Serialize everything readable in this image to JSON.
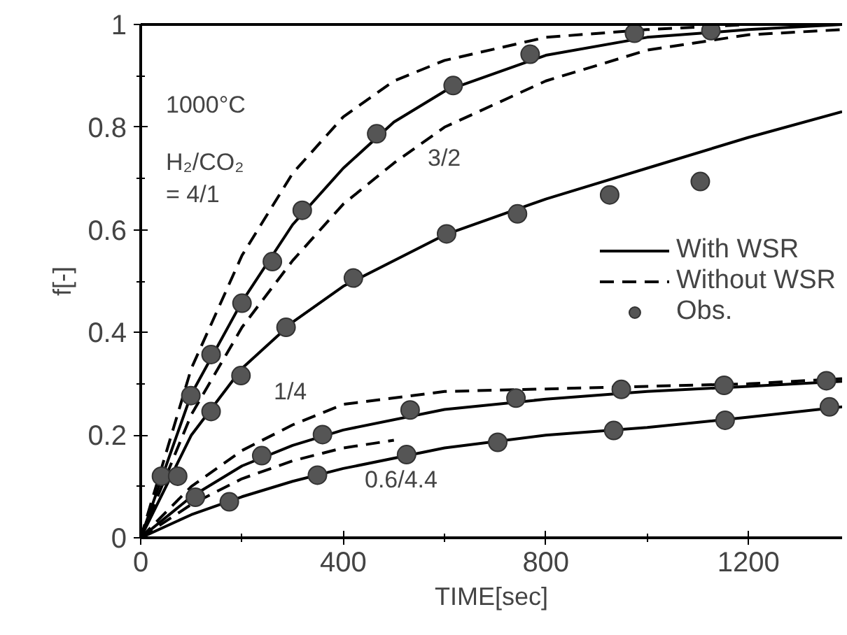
{
  "chart_data": {
    "type": "line",
    "xlabel": "TIME[sec]",
    "ylabel": "f[-]",
    "xlim": [
      0,
      1385
    ],
    "ylim": [
      0,
      1
    ],
    "xticks": [
      0,
      400,
      800,
      1200
    ],
    "yticks": [
      0,
      0.2,
      0.4,
      0.6,
      0.8,
      1
    ],
    "grid": false,
    "legend": "right",
    "series": [
      {
        "name": "With WSR",
        "line_style": "solid",
        "color": "#000000",
        "x": [
          0,
          100,
          200,
          300,
          400,
          500,
          600,
          800,
          1000,
          1200,
          1385
        ],
        "values": [
          0,
          0.28,
          0.46,
          0.61,
          0.72,
          0.81,
          0.87,
          0.94,
          0.975,
          0.99,
          1.0
        ]
      },
      {
        "name": "Without WSR",
        "line_style": "dashed",
        "color": "#000000",
        "x": [
          0,
          100,
          200,
          300,
          400,
          500,
          600,
          800,
          1000,
          1200,
          1385
        ],
        "values": [
          0,
          0.33,
          0.55,
          0.71,
          0.82,
          0.89,
          0.93,
          0.975,
          0.99,
          1.0,
          1.0
        ]
      },
      {
        "type": "line",
        "line_style": "dashed",
        "color": "#000000",
        "x": [
          0,
          100,
          200,
          300,
          400,
          500,
          600,
          800,
          1000,
          1200,
          1385
        ],
        "values": [
          0,
          0.24,
          0.41,
          0.54,
          0.65,
          0.73,
          0.8,
          0.89,
          0.95,
          0.98,
          0.99
        ]
      },
      {
        "type": "line",
        "line_style": "solid",
        "color": "#000000",
        "x": [
          0,
          100,
          200,
          300,
          400,
          600,
          800,
          1000,
          1200,
          1385
        ],
        "values": [
          0,
          0.2,
          0.33,
          0.42,
          0.49,
          0.59,
          0.66,
          0.72,
          0.78,
          0.83
        ]
      },
      {
        "type": "line",
        "line_style": "solid",
        "color": "#000000",
        "x": [
          0,
          100,
          200,
          300,
          400,
          600,
          800,
          1000,
          1200,
          1385
        ],
        "values": [
          0,
          0.08,
          0.14,
          0.18,
          0.21,
          0.25,
          0.27,
          0.285,
          0.295,
          0.305
        ]
      },
      {
        "type": "line",
        "line_style": "dashed",
        "color": "#000000",
        "x": [
          0,
          100,
          200,
          300,
          400,
          600,
          800,
          1000,
          1200,
          1385
        ],
        "values": [
          0,
          0.1,
          0.17,
          0.22,
          0.26,
          0.285,
          0.29,
          0.295,
          0.3,
          0.31
        ]
      },
      {
        "type": "line",
        "line_style": "solid",
        "color": "#000000",
        "x": [
          0,
          100,
          200,
          300,
          400,
          600,
          800,
          1000,
          1200,
          1385
        ],
        "values": [
          0,
          0.045,
          0.08,
          0.11,
          0.135,
          0.175,
          0.2,
          0.215,
          0.235,
          0.255
        ]
      },
      {
        "type": "line",
        "line_style": "dashed",
        "color": "#000000",
        "x": [
          0,
          100,
          200,
          300,
          400,
          500
        ],
        "values": [
          0,
          0.065,
          0.115,
          0.15,
          0.175,
          0.19
        ]
      },
      {
        "name": "Obs.",
        "type": "scatter",
        "marker": "circle",
        "color": "#555555",
        "x": [
          41,
          99,
          139,
          200,
          260,
          319,
          466,
          617,
          769,
          975,
          1126
        ],
        "values": [
          0.12,
          0.277,
          0.357,
          0.457,
          0.538,
          0.638,
          0.787,
          0.881,
          0.942,
          0.983,
          0.988
        ]
      },
      {
        "type": "scatter",
        "marker": "circle",
        "color": "#555555",
        "x": [
          73,
          139,
          198,
          287,
          420,
          604,
          744,
          926,
          1105
        ],
        "values": [
          0.12,
          0.246,
          0.316,
          0.41,
          0.506,
          0.592,
          0.631,
          0.668,
          0.694
        ]
      },
      {
        "type": "scatter",
        "marker": "circle",
        "color": "#555555",
        "x": [
          108,
          239,
          359,
          532,
          741,
          949,
          1152,
          1354
        ],
        "values": [
          0.079,
          0.16,
          0.201,
          0.249,
          0.272,
          0.289,
          0.297,
          0.306
        ]
      },
      {
        "type": "scatter",
        "marker": "circle",
        "color": "#555555",
        "x": [
          175,
          349,
          525,
          705,
          934,
          1154,
          1360
        ],
        "values": [
          0.07,
          0.122,
          0.162,
          0.186,
          0.209,
          0.229,
          0.255
        ]
      }
    ],
    "annotations": [
      "1000°C",
      "H₂/CO₂\n= 4/1",
      "3/2",
      "1/4",
      "0.6/4.4"
    ]
  }
}
